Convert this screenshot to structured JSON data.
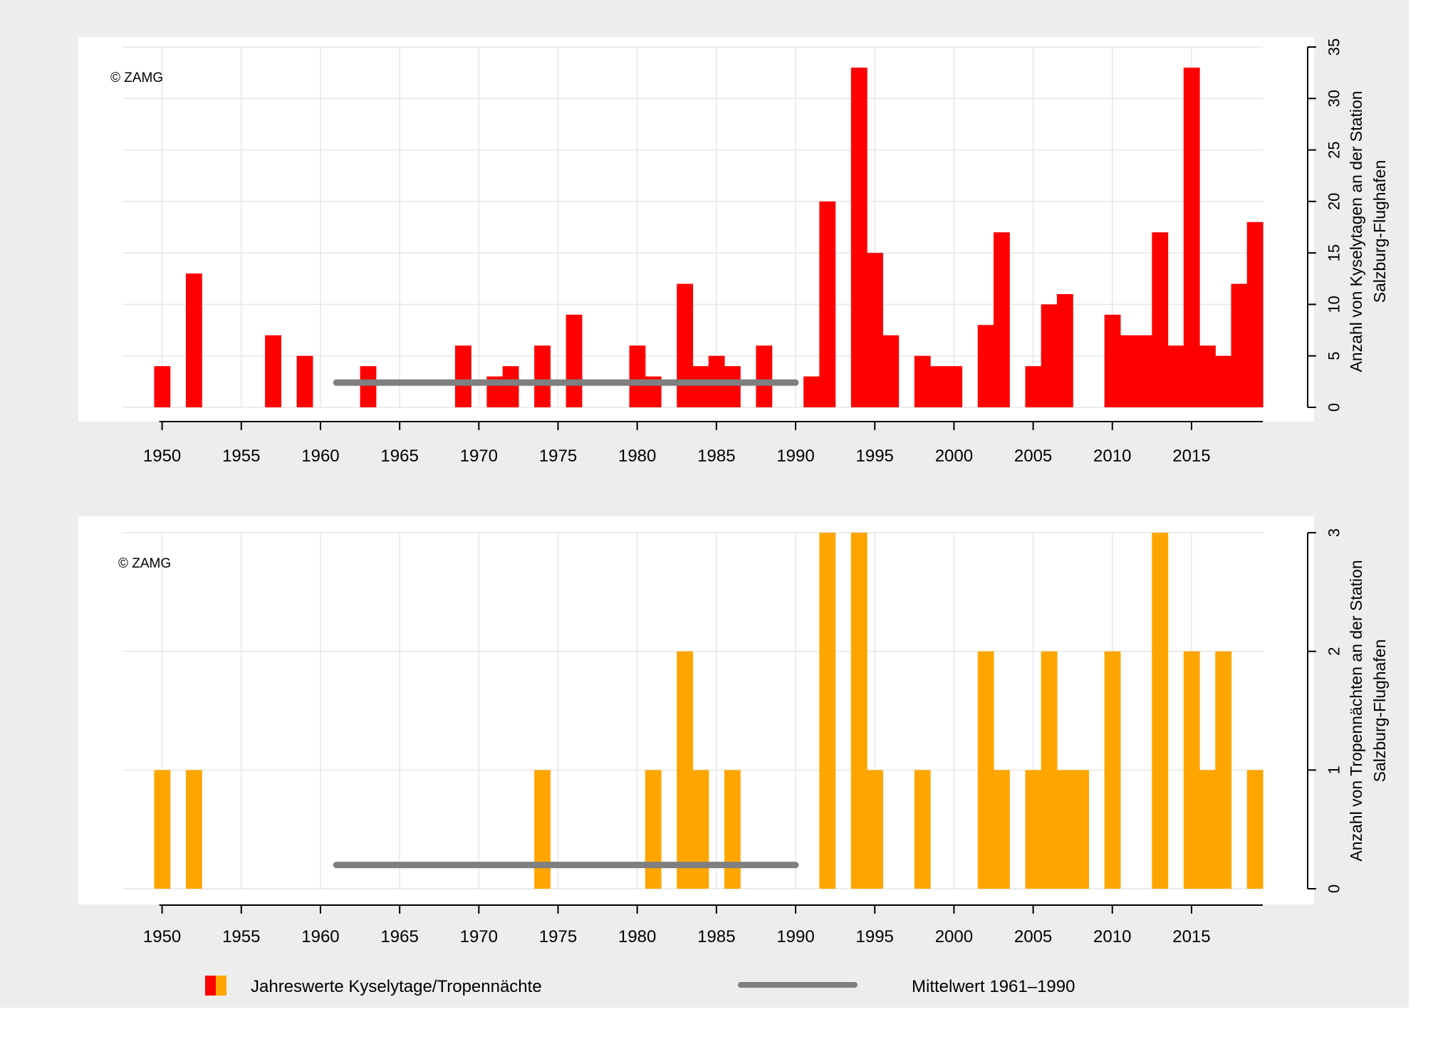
{
  "colors": {
    "background": "#ededed",
    "panel": "#ffffff",
    "grid": "#e6e6e6",
    "kyselytage": "#ff0000",
    "tropennaechte": "#ffa500",
    "mean_line": "#7f7f7f",
    "axis": "#000000"
  },
  "legend": {
    "bars_label": "Jahreswerte Kyselytage/Tropennächte",
    "mean_label": "Mittelwert 1961–1990"
  },
  "chart_data": [
    {
      "type": "bar",
      "copyright": "© ZAMG",
      "ylabel": "Anzahl von Kyselytagen an der Station",
      "ylabel2": "Salzburg-Flughafen",
      "xlim": [
        1948,
        2019
      ],
      "ylim": [
        0,
        35
      ],
      "yticks": [
        0,
        5,
        10,
        15,
        20,
        25,
        30,
        35
      ],
      "xticks": [
        1950,
        1955,
        1960,
        1965,
        1970,
        1975,
        1980,
        1985,
        1990,
        1995,
        2000,
        2005,
        2010,
        2015
      ],
      "grid": true,
      "x": [
        1950,
        1952,
        1957,
        1959,
        1963,
        1969,
        1971,
        1972,
        1974,
        1976,
        1980,
        1981,
        1983,
        1984,
        1985,
        1986,
        1988,
        1991,
        1992,
        1994,
        1995,
        1996,
        1998,
        1999,
        2000,
        2002,
        2003,
        2005,
        2006,
        2007,
        2010,
        2011,
        2012,
        2013,
        2014,
        2015,
        2016,
        2017,
        2018,
        2019
      ],
      "values": [
        4,
        13,
        7,
        5,
        4,
        6,
        3,
        4,
        6,
        9,
        6,
        3,
        12,
        4,
        5,
        4,
        6,
        3,
        20,
        33,
        15,
        7,
        5,
        4,
        4,
        8,
        17,
        4,
        10,
        11,
        9,
        7,
        7,
        17,
        6,
        33,
        6,
        5,
        12,
        18
      ],
      "mean": {
        "from": 1961,
        "to": 1990,
        "value": 2.4
      }
    },
    {
      "type": "bar",
      "copyright": "© ZAMG",
      "ylabel": "Anzahl von Tropennächten an der Station",
      "ylabel2": "Salzburg-Flughafen",
      "xlim": [
        1948,
        2019
      ],
      "ylim": [
        0,
        3
      ],
      "yticks": [
        0,
        1,
        2,
        3
      ],
      "xticks": [
        1950,
        1955,
        1960,
        1965,
        1970,
        1975,
        1980,
        1985,
        1990,
        1995,
        2000,
        2005,
        2010,
        2015
      ],
      "grid": true,
      "x": [
        1950,
        1952,
        1974,
        1981,
        1983,
        1984,
        1986,
        1992,
        1994,
        1995,
        1998,
        2002,
        2003,
        2005,
        2006,
        2007,
        2008,
        2010,
        2013,
        2015,
        2016,
        2017,
        2019
      ],
      "values": [
        1,
        1,
        1,
        1,
        2,
        1,
        1,
        3,
        3,
        1,
        1,
        2,
        1,
        1,
        2,
        1,
        1,
        2,
        3,
        2,
        1,
        2,
        1
      ],
      "mean": {
        "from": 1961,
        "to": 1990,
        "value": 0.2
      }
    }
  ]
}
